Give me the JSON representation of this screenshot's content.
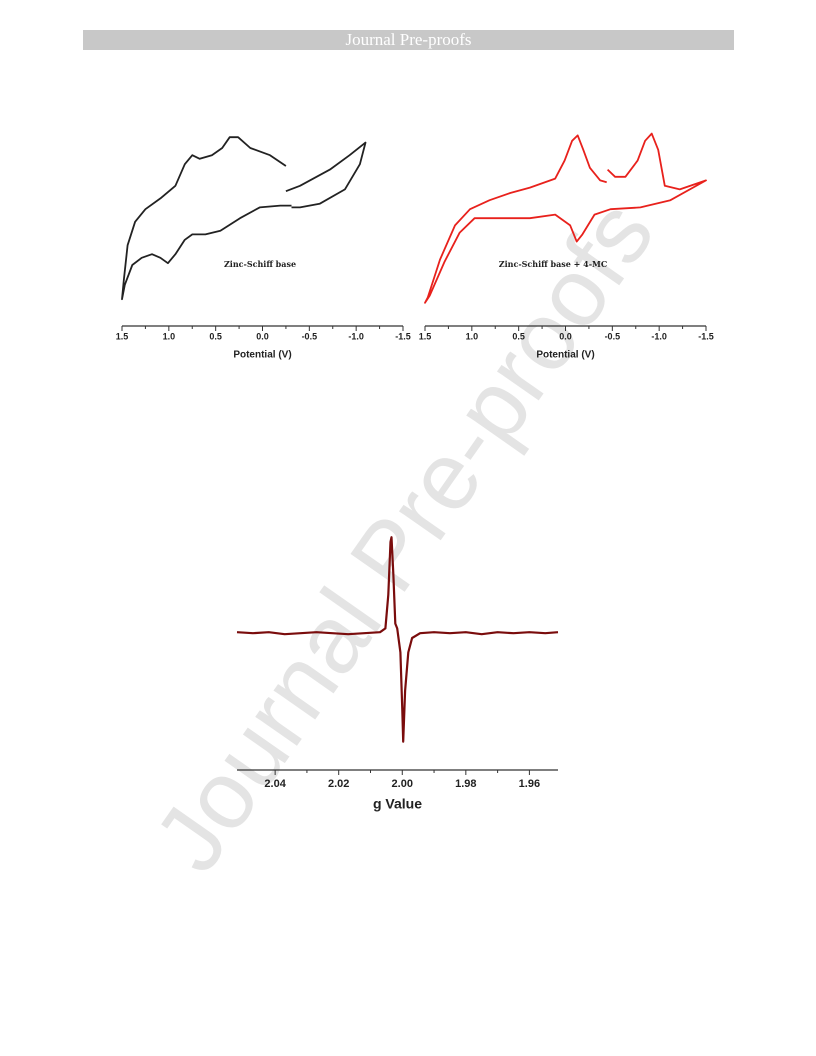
{
  "header": {
    "title": "Journal Pre-proofs"
  },
  "watermark": "Journal Pre-proofs",
  "chart_data": [
    {
      "type": "line",
      "x_label": "Potential (V)",
      "annotation": "Zinc-Schiff base",
      "xlim": [
        1.5,
        -1.5
      ],
      "ylim": [
        0,
        100
      ],
      "xticks": [
        1.5,
        {
          "value": 1.0,
          "label": "1.0"
        },
        0.5,
        {
          "value": 0.0,
          "label": "0.0"
        },
        -0.5,
        {
          "value": -1.0,
          "label": "-1.0"
        },
        -1.5
      ],
      "series": [
        {
          "color": "#222222",
          "x": [
            -0.25,
            -0.08,
            0.13,
            0.26,
            0.35,
            0.43,
            0.54,
            0.67,
            0.75,
            0.83,
            0.93,
            1.09,
            1.25,
            1.36,
            1.44,
            1.48,
            1.5,
            1.47,
            1.39,
            1.29,
            1.18,
            1.09,
            1.01,
            0.93,
            0.83,
            0.75,
            0.61,
            0.45,
            0.24,
            0.03,
            -0.19,
            -0.31,
            null,
            -0.25,
            -0.4,
            -0.72,
            -0.93,
            -1.1,
            -1.04,
            -0.88,
            -0.61,
            -0.4,
            -0.31
          ],
          "values": [
            80,
            86,
            90,
            96,
            96,
            90,
            86,
            84,
            86,
            81,
            69,
            62,
            56,
            49,
            36,
            17,
            6,
            14,
            25,
            29,
            31,
            29,
            26,
            31,
            39,
            42,
            42,
            44,
            51,
            57,
            58,
            58,
            null,
            66,
            69,
            78,
            86,
            93,
            81,
            67,
            59,
            57,
            57
          ]
        }
      ]
    },
    {
      "type": "line",
      "x_label": "Potential (V)",
      "annotation": "Zinc-Schiff base  + 4-MC",
      "xlim": [
        1.5,
        -1.5
      ],
      "ylim": [
        0,
        100
      ],
      "xticks": [
        1.5,
        {
          "value": 1.0,
          "label": "1.0"
        },
        0.5,
        {
          "value": 0.0,
          "label": "0.0"
        },
        -0.5,
        {
          "value": -1.0,
          "label": "-1.0"
        },
        -1.5
      ],
      "series": [
        {
          "color": "#e8211c",
          "x": [
            -0.44,
            -0.37,
            -0.26,
            -0.19,
            -0.13,
            -0.07,
            0.01,
            0.11,
            0.38,
            0.59,
            0.81,
            1.02,
            1.18,
            1.34,
            1.47,
            1.5,
            1.45,
            1.29,
            1.13,
            0.97,
            0.7,
            0.38,
            0.11,
            -0.05,
            -0.12,
            -0.18,
            -0.31,
            -0.48,
            -0.8,
            -1.12,
            -1.5,
            -1.22,
            -1.06,
            -0.99,
            -0.92,
            -0.85,
            -0.77,
            -0.64,
            -0.53,
            -0.45
          ],
          "values": [
            71,
            72,
            79,
            89,
            97,
            94,
            83,
            73,
            68,
            65,
            61,
            56,
            47,
            28,
            7,
            4,
            8,
            27,
            43,
            51,
            51,
            51,
            53,
            47,
            38,
            42,
            53,
            56,
            57,
            61,
            72,
            67,
            69,
            89,
            98,
            94,
            83,
            74,
            74,
            78
          ]
        }
      ]
    },
    {
      "type": "line",
      "x_label": "g Value",
      "xlim": [
        2.052,
        1.951
      ],
      "ylim": [
        -130,
        120
      ],
      "xticks": [
        2.04,
        2.02,
        {
          "value": 2.0,
          "label": "2.00"
        },
        1.98,
        1.96
      ],
      "series": [
        {
          "color": "#7a0c0c",
          "x": [
            2.052,
            2.047,
            2.042,
            2.037,
            2.032,
            2.027,
            2.022,
            2.017,
            2.012,
            2.007,
            2.0053,
            2.0044,
            2.0037,
            2.0034,
            2.0028,
            2.0022,
            2.0016,
            2.0006,
            2.0,
            1.9997,
            1.9991,
            1.9981,
            1.9969,
            1.9944,
            1.99,
            1.985,
            1.98,
            1.975,
            1.97,
            1.965,
            1.96,
            1.955,
            1.951
          ],
          "values": [
            1,
            0,
            1,
            -1,
            0,
            1,
            0,
            -1,
            0,
            1,
            5,
            40,
            95,
            100,
            60,
            10,
            5,
            -20,
            -80,
            -113,
            -60,
            -20,
            -5,
            0,
            1,
            0,
            1,
            -1,
            1,
            0,
            1,
            0,
            1
          ]
        }
      ]
    }
  ]
}
